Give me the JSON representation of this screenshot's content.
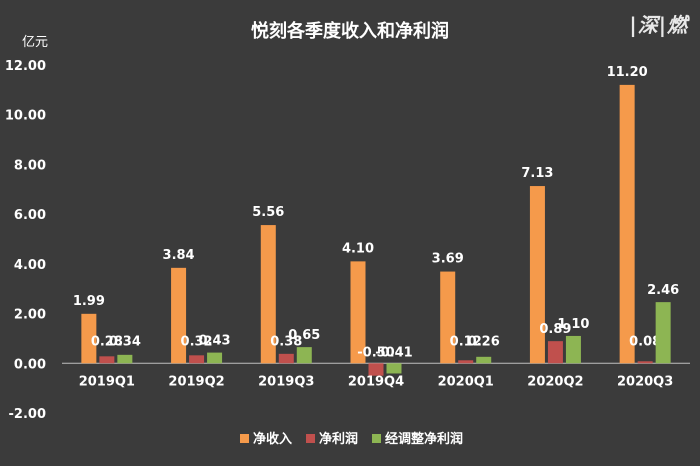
{
  "logo_text": "|深|燃",
  "chart_data": {
    "type": "bar",
    "title": "悦刻各季度收入和净利润",
    "unit_label": "亿元",
    "categories": [
      "2019Q1",
      "2019Q2",
      "2019Q3",
      "2019Q4",
      "2020Q1",
      "2020Q2",
      "2020Q3"
    ],
    "series": [
      {
        "name": "净收入",
        "color": "#f59a4b",
        "values": [
          1.99,
          3.84,
          5.56,
          4.1,
          3.69,
          7.13,
          11.2
        ],
        "labels": [
          "1.99",
          "3.84",
          "5.56",
          "4.10",
          "3.69",
          "7.13",
          "11.20"
        ]
      },
      {
        "name": "净利润",
        "color": "#c0504d",
        "values": [
          0.28,
          0.32,
          0.38,
          -0.5,
          0.12,
          0.89,
          0.08
        ],
        "labels": [
          "0.28",
          "0.32",
          "0.38",
          "-0.50",
          "0.12",
          "0.89",
          "0.08"
        ]
      },
      {
        "name": "经调整净利润",
        "color": "#8db553",
        "values": [
          0.34,
          0.43,
          0.65,
          -0.41,
          0.26,
          1.1,
          2.46
        ],
        "labels": [
          "0.34",
          "0.43",
          "0.65",
          "-0.41",
          "0.26",
          "1.10",
          "2.46"
        ]
      }
    ],
    "y_ticks": [
      "12.00",
      "10.00",
      "8.00",
      "6.00",
      "4.00",
      "2.00",
      "0.00",
      "-2.00"
    ],
    "ylim": [
      -2,
      12
    ],
    "grid": false,
    "legend_position": "bottom"
  }
}
